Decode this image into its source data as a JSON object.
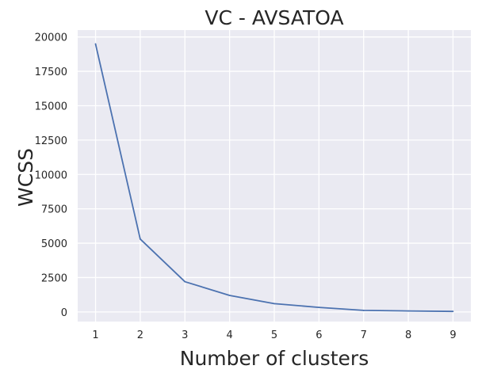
{
  "chart_data": {
    "type": "line",
    "title": "VC - AVSATOA",
    "xlabel": "Number of clusters",
    "ylabel": "WCSS",
    "x": [
      1,
      2,
      3,
      4,
      5,
      6,
      7,
      8,
      9
    ],
    "series": [
      {
        "values": [
          19500,
          5300,
          2200,
          1200,
          600,
          330,
          110,
          70,
          40
        ]
      }
    ],
    "xticks": [
      "1",
      "2",
      "3",
      "4",
      "5",
      "6",
      "7",
      "8",
      "9"
    ],
    "yticks": [
      "0",
      "2500",
      "5000",
      "7500",
      "10000",
      "12500",
      "15000",
      "17500",
      "20000"
    ],
    "xlim": [
      0.6,
      9.4
    ],
    "ylim": [
      -700,
      20500
    ],
    "grid": true,
    "background_color": "#EAEAF2",
    "line_color": "#4C72B0"
  }
}
